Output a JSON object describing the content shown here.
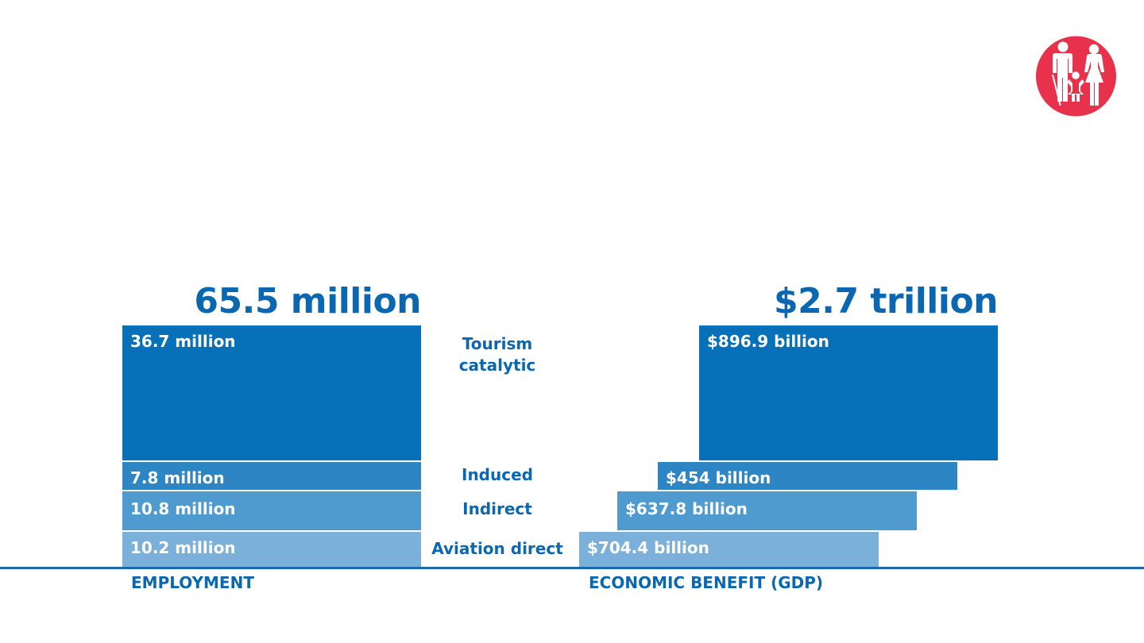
{
  "chart_data": {
    "type": "bar",
    "stacked": true,
    "categories": [
      "Aviation direct",
      "Indirect",
      "Induced",
      "Tourism catalytic"
    ],
    "series": [
      {
        "name": "EMPLOYMENT",
        "total_label": "65.5 million",
        "total": 65.5,
        "values": [
          10.2,
          10.8,
          7.8,
          36.7
        ],
        "value_labels": [
          "10.2 million",
          "10.8 million",
          "7.8 million",
          "36.7 million"
        ]
      },
      {
        "name": "ECONOMIC BENEFIT (GDP)",
        "total_label": "$2.7 trillion",
        "total": 2700,
        "values": [
          704.4,
          637.8,
          454,
          896.9
        ],
        "value_labels": [
          "$704.4 billion",
          "$637.8 billion",
          "$454 billion",
          "$896.9 billion"
        ]
      }
    ],
    "colors": {
      "aviation_direct": "#7ab0d9",
      "indirect": "#4f9bd0",
      "induced": "#2d85c4",
      "tourism_catalytic": "#0670b8"
    }
  },
  "category_labels": {
    "tourism_catalytic": "Tourism\ncatalytic",
    "induced": "Induced",
    "indirect": "Indirect",
    "aviation_direct": "Aviation direct"
  },
  "theme": {
    "text_blue": "#0b67b0",
    "baseline": "#1a68ad",
    "badge_red": "#e8314a"
  },
  "badge_icon": "family-icon"
}
